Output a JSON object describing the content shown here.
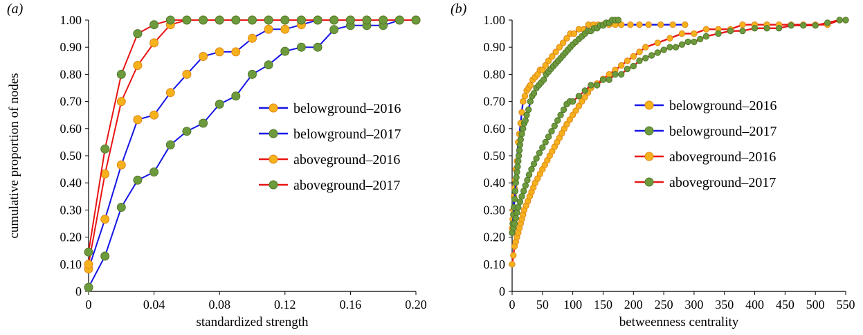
{
  "colors": {
    "belowground_line": "#1414e6",
    "aboveground_line": "#e81414",
    "marker_2016": "#f5b21c",
    "marker_2017": "#6c9a3c",
    "marker_edge_2016": "#e0861a",
    "marker_edge_2017": "#52782c"
  },
  "legend_entries": [
    "belowground–2016",
    "belowground–2017",
    "aboveground–2016",
    "aboveground–2017"
  ],
  "chart_data": [
    {
      "panel_label": "(a)",
      "type": "line",
      "xlabel": "standardized strength",
      "ylabel": "cumulative proportion of nodes",
      "xlim": [
        0,
        0.2
      ],
      "ylim": [
        0,
        1.0
      ],
      "xticks": [
        "0",
        "0.04",
        "0.08",
        "0.12",
        "0.16",
        "0.20"
      ],
      "xtick_values": [
        0,
        0.04,
        0.08,
        0.12,
        0.16,
        0.2
      ],
      "yticks": [
        "0",
        "0.10",
        "0.20",
        "0.30",
        "0.40",
        "0.50",
        "0.60",
        "0.70",
        "0.80",
        "0.90",
        "1.00"
      ],
      "ytick_values": [
        0,
        0.1,
        0.2,
        0.3,
        0.4,
        0.5,
        0.6,
        0.7,
        0.8,
        0.9,
        1.0
      ],
      "grid": false,
      "legend_position": "right",
      "series": [
        {
          "name": "belowground–2016",
          "line": "belowground_line",
          "marker": "2016",
          "x": [
            0,
            0.01,
            0.02,
            0.03,
            0.04,
            0.05,
            0.06,
            0.07,
            0.08,
            0.09,
            0.1,
            0.11,
            0.12,
            0.13,
            0.14,
            0.15,
            0.16,
            0.17,
            0.18,
            0.19,
            0.2
          ],
          "y": [
            0.083,
            0.266,
            0.466,
            0.633,
            0.65,
            0.733,
            0.8,
            0.866,
            0.883,
            0.883,
            0.933,
            0.966,
            0.966,
            0.983,
            1.0,
            1.0,
            1.0,
            1.0,
            1.0,
            1.0,
            1.0
          ]
        },
        {
          "name": "belowground–2017",
          "line": "belowground_line",
          "marker": "2017",
          "x": [
            0,
            0.01,
            0.02,
            0.03,
            0.04,
            0.05,
            0.06,
            0.07,
            0.08,
            0.09,
            0.1,
            0.11,
            0.12,
            0.13,
            0.14,
            0.15,
            0.16,
            0.17,
            0.18,
            0.19,
            0.2
          ],
          "y": [
            0.015,
            0.13,
            0.31,
            0.41,
            0.44,
            0.54,
            0.59,
            0.62,
            0.69,
            0.72,
            0.8,
            0.835,
            0.885,
            0.9,
            0.9,
            0.965,
            0.98,
            0.98,
            0.98,
            1.0,
            1.0
          ]
        },
        {
          "name": "aboveground–2016",
          "line": "aboveground_line",
          "marker": "2016",
          "x": [
            0,
            0.01,
            0.02,
            0.03,
            0.04,
            0.05,
            0.06,
            0.07,
            0.08,
            0.09,
            0.1,
            0.11,
            0.12,
            0.13,
            0.14,
            0.15,
            0.16,
            0.17,
            0.18,
            0.19,
            0.2
          ],
          "y": [
            0.1,
            0.433,
            0.7,
            0.833,
            0.916,
            0.983,
            1.0,
            1.0,
            1.0,
            1.0,
            1.0,
            1.0,
            1.0,
            1.0,
            1.0,
            1.0,
            1.0,
            1.0,
            1.0,
            1.0,
            1.0
          ]
        },
        {
          "name": "aboveground–2017",
          "line": "aboveground_line",
          "marker": "2017",
          "x": [
            0,
            0.01,
            0.02,
            0.03,
            0.04,
            0.05,
            0.06,
            0.07,
            0.08,
            0.09,
            0.1,
            0.11,
            0.12,
            0.13,
            0.14,
            0.15,
            0.16,
            0.17,
            0.18,
            0.19,
            0.2
          ],
          "y": [
            0.145,
            0.525,
            0.8,
            0.95,
            0.983,
            1.0,
            1.0,
            1.0,
            1.0,
            1.0,
            1.0,
            1.0,
            1.0,
            1.0,
            1.0,
            1.0,
            1.0,
            1.0,
            1.0,
            1.0,
            1.0
          ]
        }
      ]
    },
    {
      "panel_label": "(b)",
      "type": "line",
      "xlabel": "betweenness centrality",
      "ylabel": "",
      "xlim": [
        0,
        550
      ],
      "ylim": [
        0,
        1.0
      ],
      "xticks": [
        "0",
        "50",
        "100",
        "150",
        "200",
        "250",
        "300",
        "350",
        "400",
        "450",
        "500",
        "550"
      ],
      "xtick_values": [
        0,
        50,
        100,
        150,
        200,
        250,
        300,
        350,
        400,
        450,
        500,
        550
      ],
      "yticks": [
        "0",
        "0.10",
        "0.20",
        "0.30",
        "0.40",
        "0.50",
        "0.60",
        "0.70",
        "0.80",
        "0.90",
        "1.00"
      ],
      "ytick_values": [
        0,
        0.1,
        0.2,
        0.3,
        0.4,
        0.5,
        0.6,
        0.7,
        0.8,
        0.9,
        1.0
      ],
      "grid": false,
      "legend_position": "right",
      "series": [
        {
          "name": "belowground–2016",
          "line": "belowground_line",
          "marker": "2016",
          "x": [
            0,
            1,
            2,
            3,
            4,
            5,
            6,
            8,
            10,
            12,
            14,
            16,
            18,
            21,
            24,
            27,
            30,
            34,
            38,
            42,
            46,
            50,
            55,
            60,
            66,
            72,
            78,
            84,
            90,
            96,
            102,
            110,
            118,
            126,
            134,
            142,
            150,
            160,
            170,
            180,
            195,
            210,
            225,
            245,
            265,
            285
          ],
          "y": [
            0.233,
            0.266,
            0.3,
            0.35,
            0.38,
            0.41,
            0.45,
            0.48,
            0.55,
            0.58,
            0.62,
            0.66,
            0.7,
            0.72,
            0.74,
            0.75,
            0.76,
            0.78,
            0.79,
            0.8,
            0.816,
            0.816,
            0.833,
            0.85,
            0.866,
            0.883,
            0.9,
            0.916,
            0.933,
            0.95,
            0.95,
            0.966,
            0.966,
            0.983,
            0.983,
            0.983,
            0.983,
            0.983,
            0.983,
            0.983,
            0.983,
            0.983,
            0.983,
            0.983,
            0.983,
            0.983
          ]
        },
        {
          "name": "belowground–2017",
          "line": "belowground_line",
          "marker": "2017",
          "x": [
            0,
            1,
            2,
            3,
            4,
            5,
            6,
            7,
            8,
            9,
            10,
            11,
            12,
            13,
            14,
            16,
            18,
            20,
            22,
            24,
            27,
            30,
            33,
            36,
            40,
            44,
            48,
            52,
            56,
            60,
            64,
            68,
            72,
            76,
            80,
            84,
            88,
            92,
            96,
            100,
            105,
            110,
            115,
            120,
            125,
            130,
            135,
            140,
            145,
            150,
            155,
            160,
            165,
            170,
            175
          ],
          "y": [
            0.216,
            0.25,
            0.283,
            0.31,
            0.34,
            0.37,
            0.4,
            0.42,
            0.44,
            0.46,
            0.48,
            0.5,
            0.52,
            0.54,
            0.56,
            0.58,
            0.6,
            0.62,
            0.63,
            0.65,
            0.67,
            0.7,
            0.72,
            0.73,
            0.75,
            0.76,
            0.77,
            0.78,
            0.8,
            0.81,
            0.82,
            0.83,
            0.84,
            0.85,
            0.86,
            0.87,
            0.88,
            0.89,
            0.9,
            0.91,
            0.92,
            0.93,
            0.94,
            0.95,
            0.96,
            0.96,
            0.97,
            0.97,
            0.98,
            0.98,
            0.99,
            0.99,
            1.0,
            1.0,
            1.0
          ]
        },
        {
          "name": "aboveground–2016",
          "line": "aboveground_line",
          "marker": "2016",
          "x": [
            0,
            2,
            4,
            6,
            8,
            10,
            12,
            14,
            16,
            18,
            20,
            23,
            26,
            29,
            32,
            35,
            38,
            42,
            46,
            50,
            54,
            58,
            62,
            66,
            70,
            74,
            78,
            82,
            86,
            90,
            95,
            100,
            105,
            110,
            115,
            120,
            125,
            130,
            140,
            150,
            160,
            170,
            180,
            190,
            200,
            210,
            220,
            240,
            260,
            280,
            300,
            320,
            340,
            360,
            380,
            400,
            420,
            440,
            460,
            480,
            500,
            520,
            540,
            550
          ],
          "y": [
            0.1,
            0.133,
            0.166,
            0.183,
            0.2,
            0.216,
            0.233,
            0.25,
            0.266,
            0.283,
            0.3,
            0.316,
            0.333,
            0.35,
            0.366,
            0.383,
            0.4,
            0.416,
            0.433,
            0.45,
            0.466,
            0.483,
            0.5,
            0.516,
            0.533,
            0.55,
            0.566,
            0.583,
            0.6,
            0.616,
            0.633,
            0.65,
            0.666,
            0.683,
            0.7,
            0.716,
            0.733,
            0.75,
            0.766,
            0.783,
            0.8,
            0.816,
            0.833,
            0.85,
            0.866,
            0.883,
            0.9,
            0.916,
            0.933,
            0.95,
            0.95,
            0.966,
            0.966,
            0.966,
            0.983,
            0.983,
            0.983,
            0.983,
            0.983,
            0.983,
            0.983,
            0.983,
            1.0,
            1.0
          ]
        },
        {
          "name": "aboveground–2017",
          "line": "aboveground_line",
          "marker": "2017",
          "x": [
            0,
            2,
            4,
            6,
            8,
            10,
            13,
            16,
            19,
            22,
            25,
            28,
            32,
            36,
            40,
            45,
            50,
            55,
            60,
            65,
            70,
            75,
            80,
            85,
            90,
            95,
            100,
            110,
            120,
            130,
            140,
            150,
            160,
            170,
            180,
            190,
            200,
            210,
            220,
            230,
            240,
            250,
            260,
            270,
            280,
            290,
            300,
            310,
            320,
            340,
            360,
            380,
            400,
            420,
            440,
            460,
            480,
            500,
            520,
            540,
            550
          ],
          "y": [
            0.216,
            0.233,
            0.25,
            0.27,
            0.29,
            0.31,
            0.33,
            0.35,
            0.37,
            0.39,
            0.41,
            0.43,
            0.45,
            0.47,
            0.49,
            0.51,
            0.53,
            0.55,
            0.57,
            0.59,
            0.61,
            0.63,
            0.65,
            0.67,
            0.69,
            0.7,
            0.7,
            0.72,
            0.74,
            0.76,
            0.76,
            0.78,
            0.78,
            0.8,
            0.8,
            0.82,
            0.83,
            0.85,
            0.86,
            0.87,
            0.88,
            0.89,
            0.9,
            0.9,
            0.91,
            0.92,
            0.92,
            0.93,
            0.94,
            0.95,
            0.96,
            0.96,
            0.97,
            0.97,
            0.97,
            0.98,
            0.98,
            0.98,
            0.99,
            1.0,
            1.0
          ]
        }
      ]
    }
  ]
}
